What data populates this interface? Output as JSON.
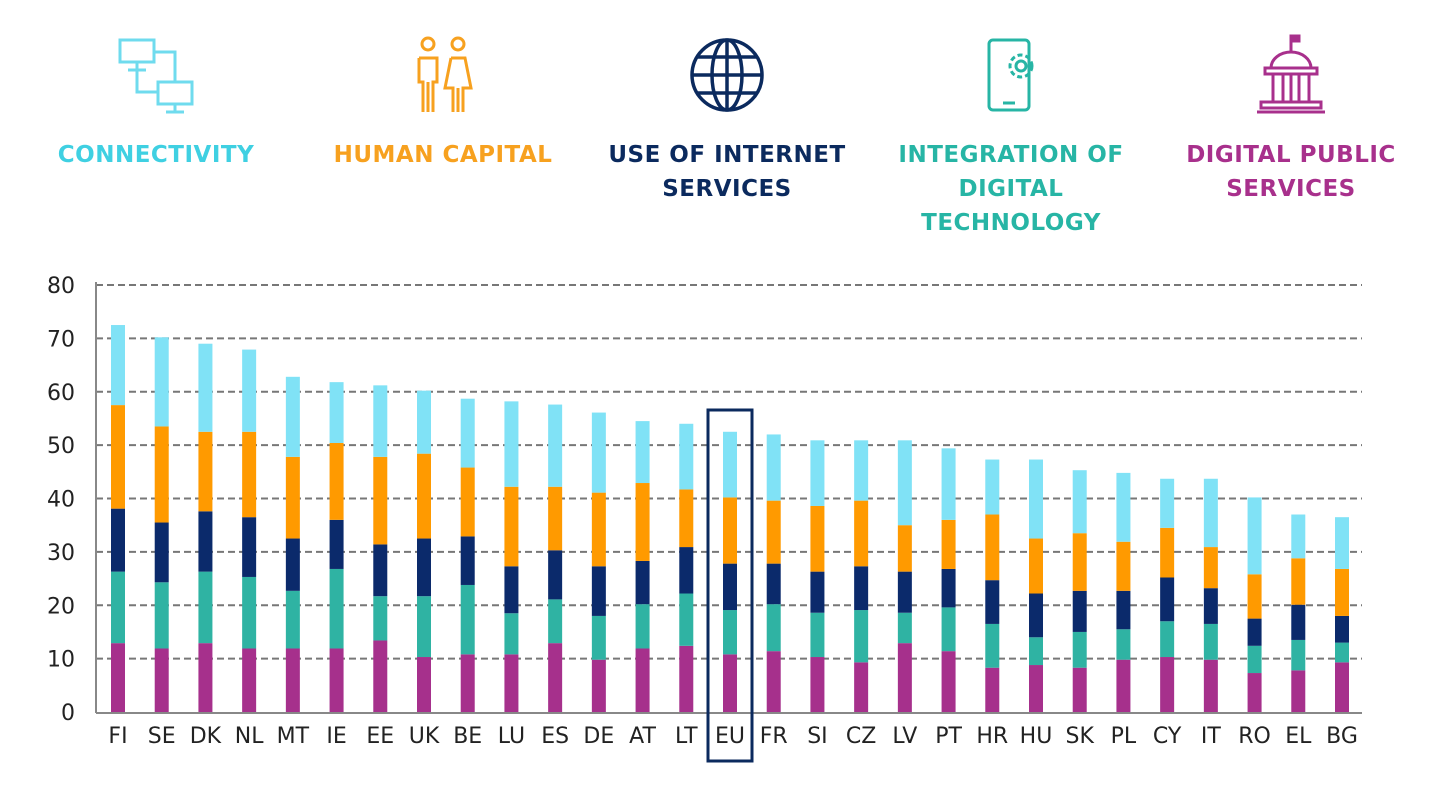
{
  "legend": [
    {
      "label_lines": [
        "CONNECTIVITY"
      ],
      "icon": "computers-network-icon",
      "color": "#3fd0e2",
      "bar_color": "#80e2f6"
    },
    {
      "label_lines": [
        "HUMAN CAPITAL"
      ],
      "icon": "people-icon",
      "color": "#f7a11f",
      "bar_color": "#ff9a00"
    },
    {
      "label_lines": [
        "USE OF INTERNET",
        "SERVICES"
      ],
      "icon": "globe-icon",
      "color": "#0b2a5e",
      "bar_color": "#0b2a6b"
    },
    {
      "label_lines": [
        "INTEGRATION OF",
        "DIGITAL TECHNOLOGY"
      ],
      "icon": "tablet-gear-icon",
      "color": "#27b5a5",
      "bar_color": "#2fb3a3"
    },
    {
      "label_lines": [
        "DIGITAL PUBLIC",
        "SERVICES"
      ],
      "icon": "government-building-icon",
      "color": "#a8308c",
      "bar_color": "#a6308c"
    }
  ],
  "chart_data": {
    "type": "bar",
    "stacked": true,
    "ylim": [
      0,
      80
    ],
    "yticks": [
      0,
      10,
      20,
      30,
      40,
      50,
      60,
      70,
      80
    ],
    "grid": true,
    "highlight": "EU",
    "categories": [
      "FI",
      "SE",
      "DK",
      "NL",
      "MT",
      "IE",
      "EE",
      "UK",
      "BE",
      "LU",
      "ES",
      "DE",
      "AT",
      "LT",
      "EU",
      "FR",
      "SI",
      "CZ",
      "LV",
      "PT",
      "HR",
      "HU",
      "SK",
      "PL",
      "CY",
      "IT",
      "RO",
      "EL",
      "BG"
    ],
    "series": [
      {
        "name": "Digital public services",
        "color": "#a6308c",
        "values": [
          12.9,
          11.9,
          12.9,
          11.9,
          11.9,
          11.9,
          13.4,
          10.3,
          10.8,
          10.8,
          12.9,
          9.8,
          11.9,
          12.4,
          10.8,
          11.4,
          10.3,
          9.3,
          12.9,
          11.4,
          8.3,
          8.8,
          8.3,
          9.8,
          10.3,
          9.8,
          7.3,
          7.8,
          9.3
        ]
      },
      {
        "name": "Integration of digital technology",
        "color": "#2fb3a3",
        "values": [
          13.4,
          12.4,
          13.4,
          13.4,
          10.8,
          14.9,
          8.3,
          11.4,
          13.0,
          7.7,
          8.2,
          8.2,
          8.3,
          9.8,
          8.3,
          8.8,
          8.3,
          9.8,
          5.7,
          8.2,
          8.2,
          5.2,
          6.7,
          5.7,
          6.7,
          6.7,
          5.1,
          5.7,
          3.7
        ]
      },
      {
        "name": "Use of internet services",
        "color": "#0b2a6b",
        "values": [
          11.8,
          11.2,
          11.3,
          11.2,
          9.8,
          9.2,
          9.7,
          10.8,
          9.1,
          8.8,
          9.2,
          9.3,
          8.1,
          8.7,
          8.7,
          7.6,
          7.7,
          8.2,
          7.7,
          7.2,
          8.2,
          8.2,
          7.7,
          7.2,
          8.2,
          6.7,
          5.1,
          6.6,
          5.0
        ]
      },
      {
        "name": "Human capital",
        "color": "#ff9a00",
        "values": [
          19.4,
          18.0,
          14.9,
          16.0,
          15.3,
          14.4,
          16.4,
          15.9,
          12.9,
          14.9,
          11.9,
          13.8,
          14.6,
          10.8,
          12.4,
          11.8,
          12.3,
          12.3,
          8.7,
          9.2,
          12.3,
          10.3,
          10.8,
          9.2,
          9.3,
          7.7,
          8.3,
          8.7,
          8.8
        ]
      },
      {
        "name": "Connectivity",
        "color": "#80e2f6",
        "values": [
          15.0,
          16.7,
          16.5,
          15.4,
          15.0,
          11.4,
          13.4,
          11.8,
          12.9,
          16.0,
          15.4,
          15.0,
          11.6,
          12.3,
          12.3,
          12.4,
          12.3,
          11.3,
          15.9,
          13.4,
          10.3,
          14.8,
          11.8,
          12.9,
          9.2,
          12.8,
          14.4,
          8.2,
          9.7
        ]
      }
    ]
  }
}
